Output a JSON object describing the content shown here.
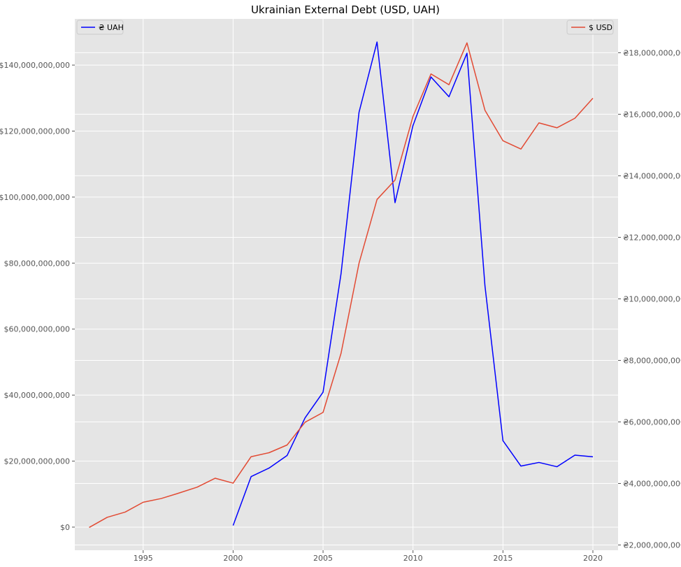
{
  "chart_data": {
    "type": "line",
    "title": "Ukrainian External Debt (USD, UAH)",
    "xlabel": "",
    "ylabel_left": "",
    "ylabel_right": "",
    "xlim": [
      1991.2,
      2021.4
    ],
    "x_ticks": [
      1995,
      2000,
      2005,
      2010,
      2015,
      2020
    ],
    "y_left": {
      "lim": [
        -7000000000,
        154000000000
      ],
      "ticks": [
        0,
        20000000000,
        40000000000,
        60000000000,
        80000000000,
        100000000000,
        120000000000,
        140000000000
      ],
      "tick_labels": [
        "$0",
        "$20,000,000,000",
        "$40,000,000,000",
        "$60,000,000,000",
        "$80,000,000,000",
        "$100,000,000,000",
        "$120,000,000,000",
        "$140,000,000,000"
      ]
    },
    "y_right": {
      "lim": [
        1830000000,
        19100000000
      ],
      "ticks": [
        2000000000,
        4000000000,
        6000000000,
        8000000000,
        10000000000,
        12000000000,
        14000000000,
        16000000000,
        18000000000
      ],
      "tick_labels": [
        "₴2,000,000,000",
        "₴4,000,000,000",
        "₴6,000,000,000",
        "₴8,000,000,000",
        "₴10,000,000,000",
        "₴12,000,000,000",
        "₴14,000,000,000",
        "₴16,000,000,000",
        "₴18,000,000,000"
      ]
    },
    "grid": true,
    "series": [
      {
        "name": "₴ UAH",
        "axis": "left",
        "color": "#0000ff",
        "legend_position": "top-left",
        "x": [
          2000,
          2001,
          2002,
          2003,
          2004,
          2005,
          2006,
          2007,
          2008,
          2009,
          2010,
          2011,
          2012,
          2013,
          2014,
          2015,
          2016,
          2017,
          2018,
          2019,
          2020
        ],
        "values": [
          500000000,
          15300000000,
          17900000000,
          21700000000,
          33100000000,
          40900000000,
          76800000000,
          125700000000,
          147000000000,
          98300000000,
          121700000000,
          136400000000,
          130400000000,
          143600000000,
          73100000000,
          26200000000,
          18500000000,
          19600000000,
          18300000000,
          21800000000,
          21300000000
        ]
      },
      {
        "name": "$ USD",
        "axis": "right",
        "color": "#e24a33",
        "legend_position": "top-right",
        "x": [
          1992,
          1993,
          1994,
          1995,
          1996,
          1997,
          1998,
          1999,
          2000,
          2001,
          2002,
          2003,
          2004,
          2005,
          2006,
          2007,
          2008,
          2009,
          2010,
          2011,
          2012,
          2013,
          2014,
          2015,
          2016,
          2017,
          2018,
          2019,
          2020
        ],
        "values": [
          2570000000,
          2900000000,
          3070000000,
          3390000000,
          3510000000,
          3690000000,
          3880000000,
          4170000000,
          4010000000,
          4870000000,
          5000000000,
          5250000000,
          5990000000,
          6310000000,
          8230000000,
          11160000000,
          13230000000,
          13860000000,
          15930000000,
          17310000000,
          16960000000,
          18320000000,
          16130000000,
          15140000000,
          14870000000,
          15720000000,
          15560000000,
          15870000000,
          16520000000
        ]
      }
    ]
  }
}
